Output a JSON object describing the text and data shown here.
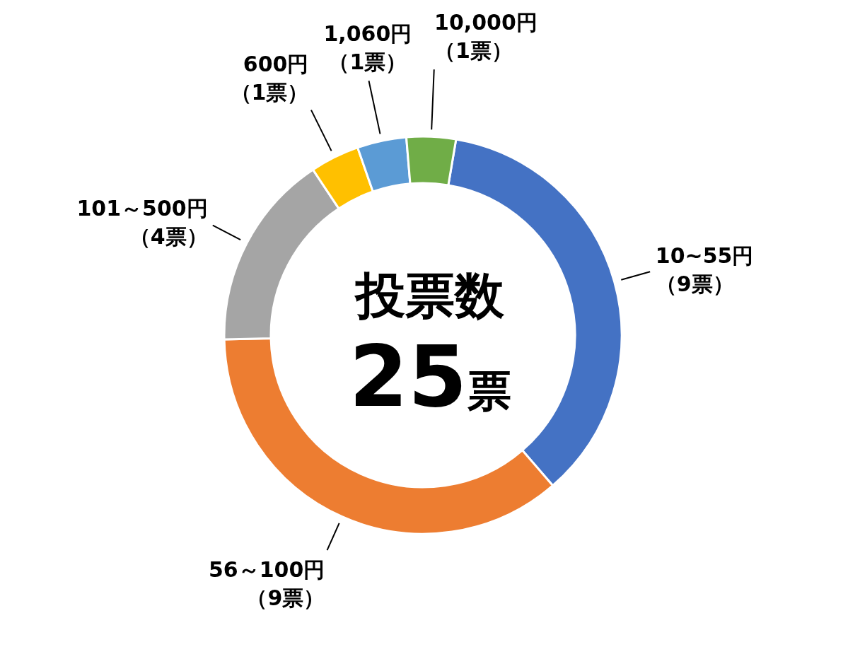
{
  "chart_data": {
    "type": "donut",
    "categories": [
      "10~55円",
      "56～100円",
      "101～500円",
      "600円",
      "1,060円",
      "10,000円"
    ],
    "values": [
      9,
      9,
      4,
      1,
      1,
      1
    ],
    "value_labels": [
      "（9票）",
      "（9票）",
      "（4票）",
      "（1票）",
      "（1票）",
      "（1票）"
    ],
    "colors": [
      "#4472c4",
      "#ed7d31",
      "#a5a5a5",
      "#ffc000",
      "#5b9bd5",
      "#70ad47"
    ],
    "annotations": [
      "投票数",
      "25票"
    ]
  }
}
